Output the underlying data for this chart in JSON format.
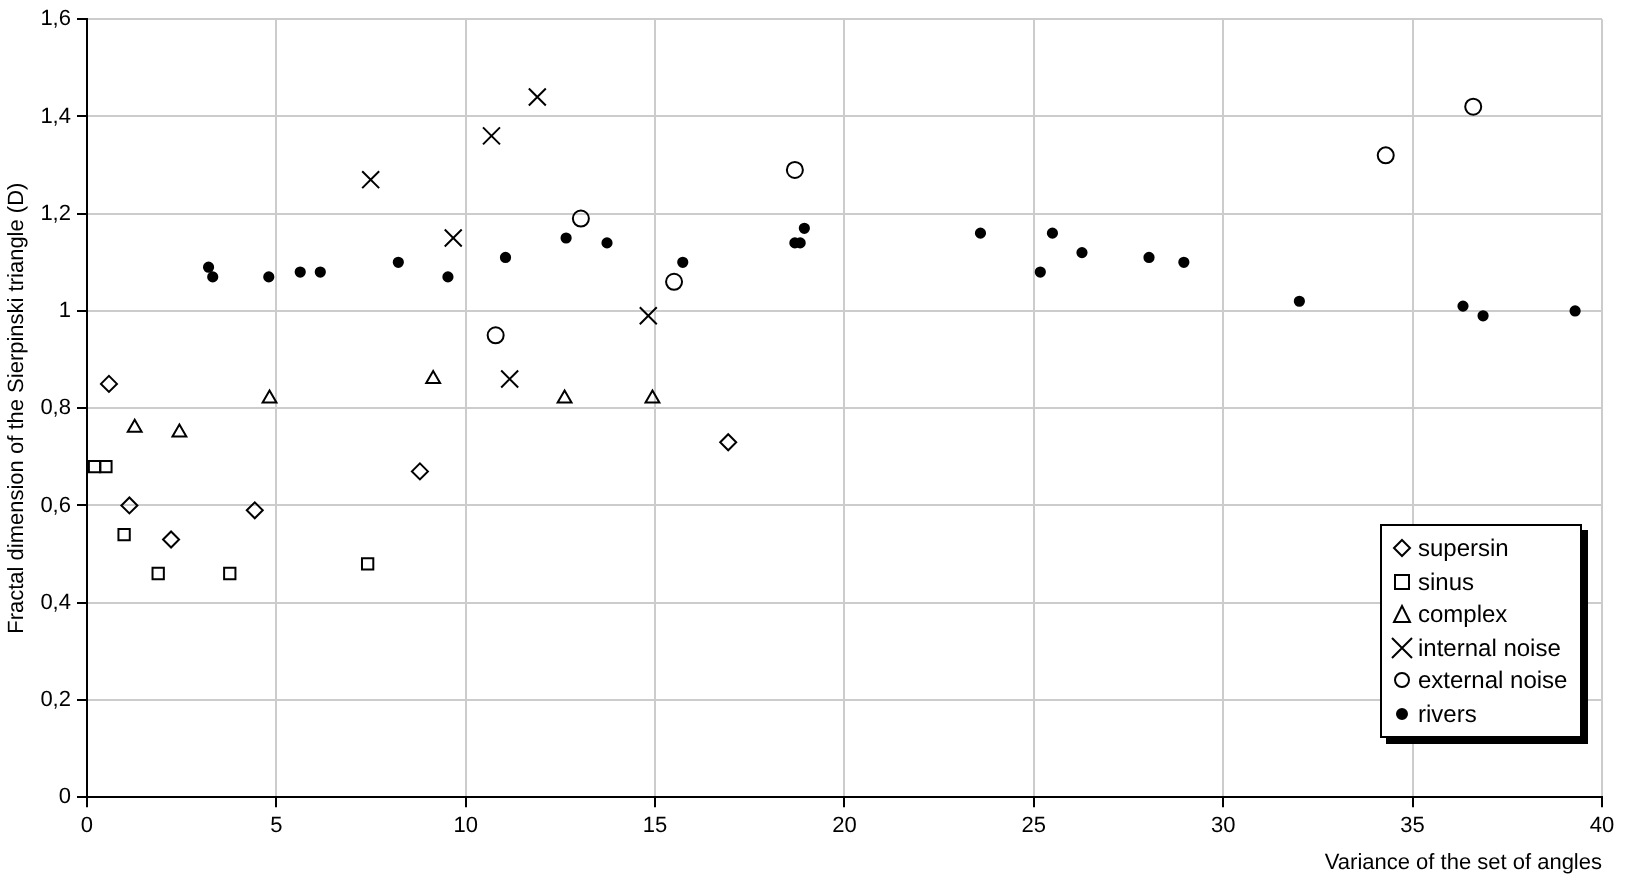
{
  "chart_data": {
    "type": "scatter",
    "xlabel": "Variance of the set of angles",
    "ylabel": "Fractal dimension of the Sierpinski triangle (D)",
    "xlim": [
      0,
      40
    ],
    "xticks": [
      0,
      5,
      10,
      15,
      20,
      25,
      30,
      35,
      40
    ],
    "ylim": [
      0,
      1.6
    ],
    "yticks": [
      0,
      {
        "value": 0.2,
        "label": "0,2"
      },
      {
        "value": 0.4,
        "label": "0,4"
      },
      {
        "value": 0.6,
        "label": "0,6"
      },
      {
        "value": 0.8,
        "label": "0,8"
      },
      1,
      {
        "value": 1.2,
        "label": "1,2"
      },
      {
        "value": 1.4,
        "label": "1,4"
      },
      {
        "value": 1.6,
        "label": "1,6"
      }
    ],
    "grid": true,
    "legend": "bottom right",
    "series": [
      {
        "name": "supersin",
        "color": "#000000",
        "marker": "diamond",
        "x": [
          0.58,
          1.12,
          2.22,
          4.43,
          8.79,
          16.93
        ],
        "values": [
          0.85,
          0.6,
          0.53,
          0.59,
          0.67,
          0.73
        ]
      },
      {
        "name": "sinus",
        "color": "#000000",
        "marker": "square",
        "x": [
          0.2,
          0.5,
          0.98,
          1.88,
          3.77,
          7.41
        ],
        "values": [
          0.68,
          0.68,
          0.54,
          0.46,
          0.46,
          0.48
        ]
      },
      {
        "name": "complex",
        "color": "#000000",
        "marker": "triangle",
        "x": [
          1.26,
          2.44,
          4.82,
          9.14,
          12.61,
          14.93
        ],
        "values": [
          0.76,
          0.75,
          0.82,
          0.86,
          0.82,
          0.82
        ]
      },
      {
        "name": "internal noise",
        "color": "#000000",
        "marker": "cross",
        "x": [
          7.49,
          9.67,
          10.68,
          11.16,
          11.89,
          14.82
        ],
        "values": [
          1.27,
          1.15,
          1.36,
          0.86,
          1.44,
          0.99
        ]
      },
      {
        "name": "external noise",
        "color": "#000000",
        "marker": "circle",
        "x": [
          10.79,
          13.04,
          15.5,
          18.69,
          34.29,
          36.6
        ],
        "values": [
          0.95,
          1.19,
          1.06,
          1.29,
          1.32,
          1.42
        ]
      },
      {
        "name": "rivers",
        "color": "#000000",
        "marker": "circle",
        "x": [
          3.21,
          3.32,
          4.8,
          5.63,
          6.16,
          8.22,
          9.53,
          11.05,
          12.65,
          13.73,
          15.73,
          18.69,
          18.83,
          18.94,
          23.59,
          25.17,
          25.49,
          26.27,
          28.04,
          28.96,
          32.01,
          36.33,
          36.86,
          39.29
        ],
        "values": [
          1.09,
          1.07,
          1.07,
          1.08,
          1.08,
          1.1,
          1.07,
          1.11,
          1.15,
          1.14,
          1.1,
          1.14,
          1.14,
          1.17,
          1.16,
          1.08,
          1.16,
          1.12,
          1.11,
          1.1,
          1.02,
          1.01,
          0.99,
          1.0
        ]
      }
    ]
  }
}
